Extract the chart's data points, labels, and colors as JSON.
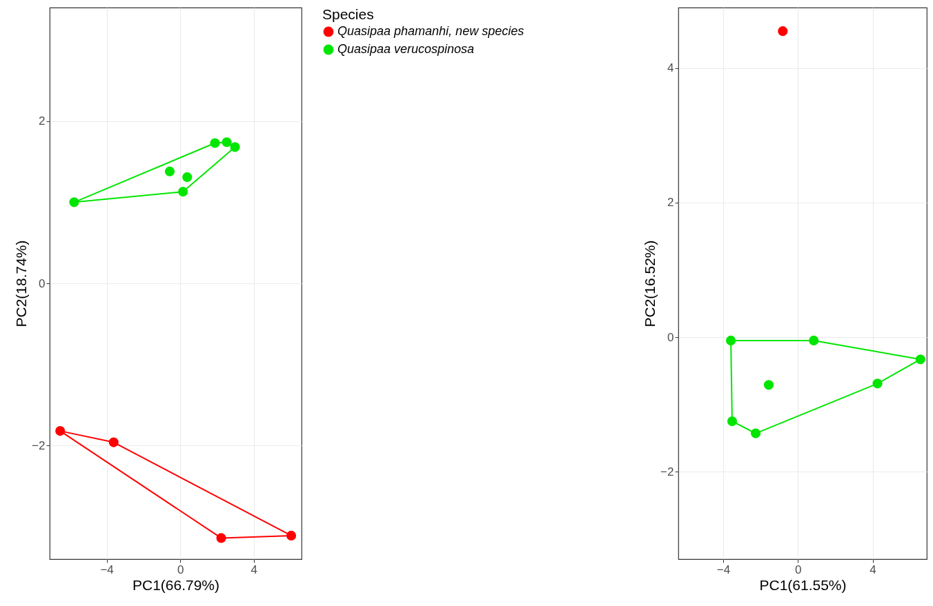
{
  "chart_data": [
    {
      "type": "scatter",
      "xlabel": "PC1(66.79%)",
      "ylabel": "PC2(18.74%)",
      "xlim": [
        -7.1,
        6.6
      ],
      "ylim": [
        -3.4,
        3.4
      ],
      "xticks": [
        -4,
        0,
        4
      ],
      "yticks": [
        -2,
        0,
        2
      ],
      "grid": true,
      "legend": "right",
      "legend_title": "Species",
      "marker": "circle",
      "series": [
        {
          "name": "Quasipaa phamanhi, new species",
          "color": "#ff0000",
          "x": [
            -6.53,
            -3.62,
            2.23,
            6.04
          ],
          "values": [
            -1.82,
            -1.96,
            -3.14,
            -3.11
          ]
        },
        {
          "name": "Quasipaa verucospinosa",
          "color": "#00e600",
          "x": [
            -5.77,
            1.89,
            2.53,
            2.98,
            -0.57,
            0.38,
            0.15
          ],
          "values": [
            1.0,
            1.73,
            1.74,
            1.68,
            1.38,
            1.31,
            1.13
          ]
        },
        {
          "type": "line",
          "marker": "none",
          "color": "#ff0000",
          "x": [
            -6.53,
            -3.62,
            6.04
          ],
          "values": [
            -1.82,
            -1.96,
            -3.11
          ]
        },
        {
          "type": "line",
          "marker": "none",
          "color": "#ff0000",
          "x": [
            -6.53,
            2.23,
            6.04
          ],
          "values": [
            -1.82,
            -3.14,
            -3.11
          ]
        },
        {
          "type": "line",
          "marker": "none",
          "color": "#00e600",
          "x": [
            -5.77,
            1.89,
            2.53,
            2.98
          ],
          "values": [
            1.0,
            1.73,
            1.74,
            1.68
          ]
        },
        {
          "type": "line",
          "marker": "none",
          "color": "#00e600",
          "x": [
            -5.77,
            0.15,
            2.98
          ],
          "values": [
            1.0,
            1.13,
            1.68
          ]
        }
      ]
    },
    {
      "type": "scatter",
      "xlabel": "PC1(61.55%)",
      "ylabel": "PC2(16.52%)",
      "xlim": [
        -6.4,
        6.9
      ],
      "ylim": [
        -3.3,
        4.9
      ],
      "xticks": [
        -4,
        0,
        4
      ],
      "yticks": [
        -2,
        0,
        2,
        4
      ],
      "grid": true,
      "marker": "circle",
      "series": [
        {
          "color": "#ff0000",
          "x": [
            -0.81
          ],
          "values": [
            4.55
          ]
        },
        {
          "color": "#00e600",
          "x": [
            -3.59,
            0.85,
            6.56,
            4.26,
            -1.56,
            -3.52,
            -2.26
          ],
          "values": [
            -0.05,
            -0.05,
            -0.33,
            -0.69,
            -0.71,
            -1.25,
            -1.43
          ]
        },
        {
          "type": "line",
          "marker": "none",
          "color": "#00e600",
          "x": [
            -3.59,
            0.85,
            6.56
          ],
          "values": [
            -0.05,
            -0.05,
            -0.33
          ]
        },
        {
          "type": "line",
          "marker": "none",
          "color": "#00e600",
          "x": [
            -3.59,
            -3.52,
            -2.26,
            4.26,
            6.56
          ],
          "values": [
            -0.05,
            -1.25,
            -1.43,
            -0.69,
            -0.33
          ]
        }
      ]
    }
  ]
}
